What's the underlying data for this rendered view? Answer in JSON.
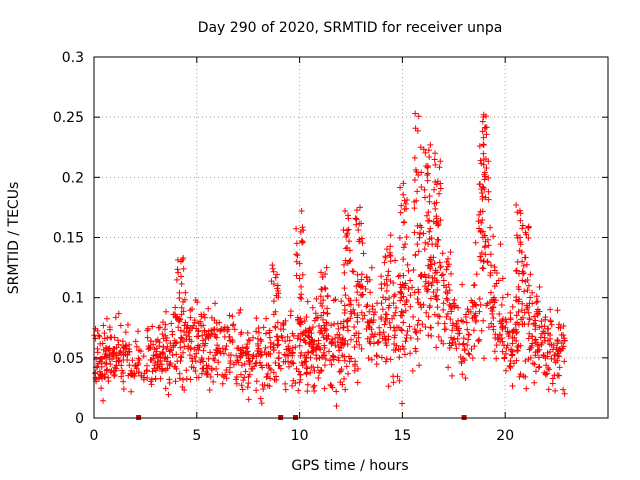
{
  "chart_data": {
    "type": "scatter",
    "title": "Day 290 of 2020, SRMTID for receiver unpa",
    "xlabel": "GPS time / hours",
    "ylabel": "SRMTID / TECUs",
    "xlim": [
      0,
      25
    ],
    "ylim": [
      0,
      0.3
    ],
    "grid": true,
    "marker": "+",
    "marker_color": "#ff0000",
    "x_ticks": [
      0,
      5,
      10,
      15,
      20
    ],
    "x_tick_labels": [
      "0",
      "5",
      "10",
      "15",
      "20"
    ],
    "y_ticks": [
      0,
      0.05,
      0.1,
      0.15,
      0.2,
      0.25,
      0.3
    ],
    "y_tick_labels": [
      "0",
      "0.05",
      "0.1",
      "0.15",
      "0.2",
      "0.25",
      "0.3"
    ],
    "data_gaps_hours": [
      2.17,
      9.08,
      9.8,
      18.0
    ],
    "series": [
      {
        "name": "SRMTID",
        "trend": [
          {
            "x": 0.0,
            "y": 0.045
          },
          {
            "x": 1.0,
            "y": 0.052
          },
          {
            "x": 2.0,
            "y": 0.048
          },
          {
            "x": 3.0,
            "y": 0.05
          },
          {
            "x": 4.0,
            "y": 0.056
          },
          {
            "x": 4.5,
            "y": 0.065
          },
          {
            "x": 5.0,
            "y": 0.065
          },
          {
            "x": 6.0,
            "y": 0.06
          },
          {
            "x": 7.0,
            "y": 0.052
          },
          {
            "x": 8.0,
            "y": 0.05
          },
          {
            "x": 9.0,
            "y": 0.056
          },
          {
            "x": 10.0,
            "y": 0.062
          },
          {
            "x": 11.0,
            "y": 0.058
          },
          {
            "x": 12.0,
            "y": 0.062
          },
          {
            "x": 12.8,
            "y": 0.08
          },
          {
            "x": 13.5,
            "y": 0.085
          },
          {
            "x": 14.5,
            "y": 0.075
          },
          {
            "x": 15.2,
            "y": 0.09
          },
          {
            "x": 16.0,
            "y": 0.12
          },
          {
            "x": 16.8,
            "y": 0.11
          },
          {
            "x": 17.5,
            "y": 0.08
          },
          {
            "x": 18.3,
            "y": 0.07
          },
          {
            "x": 19.0,
            "y": 0.14
          },
          {
            "x": 19.6,
            "y": 0.09
          },
          {
            "x": 20.3,
            "y": 0.06
          },
          {
            "x": 21.0,
            "y": 0.08
          },
          {
            "x": 22.0,
            "y": 0.06
          },
          {
            "x": 22.9,
            "y": 0.05
          }
        ],
        "peaks": [
          {
            "x": 4.2,
            "y": 0.133
          },
          {
            "x": 8.8,
            "y": 0.127
          },
          {
            "x": 10.0,
            "y": 0.172
          },
          {
            "x": 11.2,
            "y": 0.125
          },
          {
            "x": 12.3,
            "y": 0.172
          },
          {
            "x": 12.9,
            "y": 0.175
          },
          {
            "x": 14.3,
            "y": 0.152
          },
          {
            "x": 15.05,
            "y": 0.195
          },
          {
            "x": 15.75,
            "y": 0.253
          },
          {
            "x": 16.2,
            "y": 0.227
          },
          {
            "x": 16.7,
            "y": 0.22
          },
          {
            "x": 18.9,
            "y": 0.233
          },
          {
            "x": 19.05,
            "y": 0.252
          },
          {
            "x": 20.7,
            "y": 0.177
          },
          {
            "x": 21.0,
            "y": 0.16
          },
          {
            "x": 15.0,
            "y": 0.012
          },
          {
            "x": 11.7,
            "y": 0.01
          }
        ]
      }
    ]
  }
}
